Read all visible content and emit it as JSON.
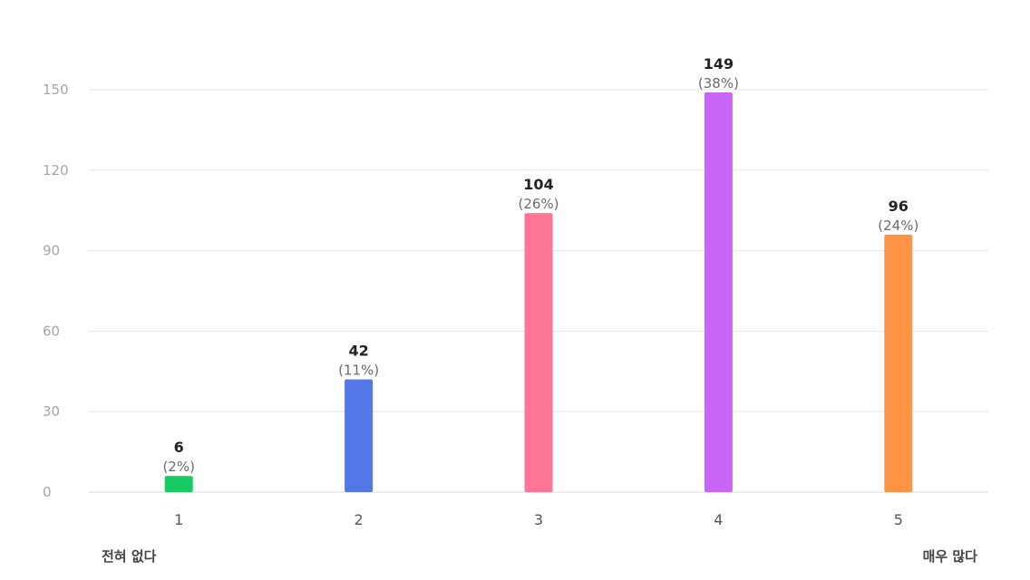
{
  "chart_data": {
    "type": "bar",
    "categories": [
      "1",
      "2",
      "3",
      "4",
      "5"
    ],
    "values": [
      6,
      42,
      104,
      149,
      96
    ],
    "percent_labels": [
      "(2%)",
      "(11%)",
      "(26%)",
      "(38%)",
      "(24%)"
    ],
    "colors": [
      "#18c964",
      "#5677e8",
      "#ff7597",
      "#c966f7",
      "#ff9445"
    ],
    "yticks": [
      0,
      30,
      60,
      90,
      120,
      150
    ],
    "ylim": [
      0,
      150
    ],
    "grid": true,
    "scale_min_label": "전혀 없다",
    "scale_max_label": "매우 많다"
  }
}
